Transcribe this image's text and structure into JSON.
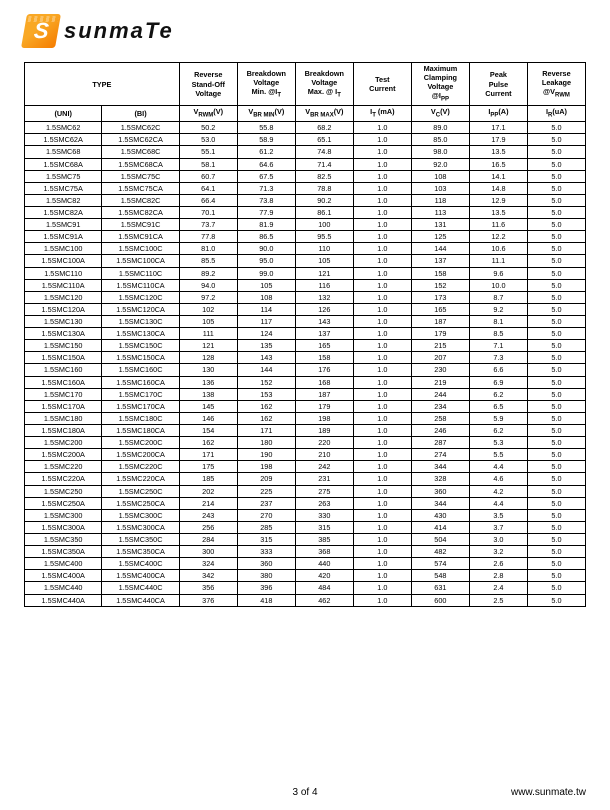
{
  "logo": {
    "text": "sunmaTe"
  },
  "headers": {
    "type": "TYPE",
    "reverse_standoff": "Reverse\nStand-Off\nVoltage",
    "breakdown_min": "Breakdown\nVoltage\nMin. @I",
    "breakdown_max": "Breakdown\nVoltage\nMax. @ I",
    "test_current": "Test\nCurrent",
    "max_clamping": "Maximum\nClamping\nVoltage\n@I",
    "peak_pulse": "Peak\nPulse\nCurrent",
    "reverse_leakage": "Reverse\nLeakage\n@V",
    "uni": "(UNI)",
    "bi": "(BI)",
    "vrwm": "V",
    "vrwm_sub": "RWM",
    "vrwm_unit": "(V)",
    "vbrmin": "V",
    "vbrmin_sub": "BR MIN",
    "vbrmin_unit": "(V)",
    "vbrmax": "V",
    "vbrmax_sub": "BR MAX",
    "vbrmax_unit": "(V)",
    "it": "I",
    "it_sub": "T",
    "it_unit": " (mA)",
    "vc": "V",
    "vc_sub": "C",
    "vc_unit": "(V)",
    "ipp": "I",
    "ipp_sub": "PP",
    "ipp_unit": "(A)",
    "ir": "I",
    "ir_sub": "R",
    "ir_unit": "(uA)",
    "bd_sub_t": "T",
    "clamp_sub": "PP",
    "leak_sub": "RWM"
  },
  "footer": {
    "page": "3 of  4",
    "url": "www.sunmate.tw"
  },
  "rows": [
    [
      "1.5SMC62",
      "1.5SMC62C",
      "50.2",
      "55.8",
      "68.2",
      "1.0",
      "89.0",
      "17.1",
      "5.0"
    ],
    [
      "1.5SMC62A",
      "1.5SMC62CA",
      "53.0",
      "58.9",
      "65.1",
      "1.0",
      "85.0",
      "17.9",
      "5.0"
    ],
    [
      "1.5SMC68",
      "1.5SMC68C",
      "55.1",
      "61.2",
      "74.8",
      "1.0",
      "98.0",
      "13.5",
      "5.0"
    ],
    [
      "1.5SMC68A",
      "1.5SMC68CA",
      "58.1",
      "64.6",
      "71.4",
      "1.0",
      "92.0",
      "16.5",
      "5.0"
    ],
    [
      "1.5SMC75",
      "1.5SMC75C",
      "60.7",
      "67.5",
      "82.5",
      "1.0",
      "108",
      "14.1",
      "5.0"
    ],
    [
      "1.5SMC75A",
      "1.5SMC75CA",
      "64.1",
      "71.3",
      "78.8",
      "1.0",
      "103",
      "14.8",
      "5.0"
    ],
    [
      "1.5SMC82",
      "1.5SMC82C",
      "66.4",
      "73.8",
      "90.2",
      "1.0",
      "118",
      "12.9",
      "5.0"
    ],
    [
      "1.5SMC82A",
      "1.5SMC82CA",
      "70.1",
      "77.9",
      "86.1",
      "1.0",
      "113",
      "13.5",
      "5.0"
    ],
    [
      "1.5SMC91",
      "1.5SMC91C",
      "73.7",
      "81.9",
      "100",
      "1.0",
      "131",
      "11.6",
      "5.0"
    ],
    [
      "1.5SMC91A",
      "1.5SMC91CA",
      "77.8",
      "86.5",
      "95.5",
      "1.0",
      "125",
      "12.2",
      "5.0"
    ],
    [
      "1.5SMC100",
      "1.5SMC100C",
      "81.0",
      "90.0",
      "110",
      "1.0",
      "144",
      "10.6",
      "5.0"
    ],
    [
      "1.5SMC100A",
      "1.5SMC100CA",
      "85.5",
      "95.0",
      "105",
      "1.0",
      "137",
      "11.1",
      "5.0"
    ],
    [
      "1.5SMC110",
      "1.5SMC110C",
      "89.2",
      "99.0",
      "121",
      "1.0",
      "158",
      "9.6",
      "5.0"
    ],
    [
      "1.5SMC110A",
      "1.5SMC110CA",
      "94.0",
      "105",
      "116",
      "1.0",
      "152",
      "10.0",
      "5.0"
    ],
    [
      "1.5SMC120",
      "1.5SMC120C",
      "97.2",
      "108",
      "132",
      "1.0",
      "173",
      "8.7",
      "5.0"
    ],
    [
      "1.5SMC120A",
      "1.5SMC120CA",
      "102",
      "114",
      "126",
      "1.0",
      "165",
      "9.2",
      "5.0"
    ],
    [
      "1.5SMC130",
      "1.5SMC130C",
      "105",
      "117",
      "143",
      "1.0",
      "187",
      "8.1",
      "5.0"
    ],
    [
      "1.5SMC130A",
      "1.5SMC130CA",
      "111",
      "124",
      "137",
      "1.0",
      "179",
      "8.5",
      "5.0"
    ],
    [
      "1.5SMC150",
      "1.5SMC150C",
      "121",
      "135",
      "165",
      "1.0",
      "215",
      "7.1",
      "5.0"
    ],
    [
      "1.5SMC150A",
      "1.5SMC150CA",
      "128",
      "143",
      "158",
      "1.0",
      "207",
      "7.3",
      "5.0"
    ],
    [
      "1.5SMC160",
      "1.5SMC160C",
      "130",
      "144",
      "176",
      "1.0",
      "230",
      "6.6",
      "5.0"
    ],
    [
      "1.5SMC160A",
      "1.5SMC160CA",
      "136",
      "152",
      "168",
      "1.0",
      "219",
      "6.9",
      "5.0"
    ],
    [
      "1.5SMC170",
      "1.5SMC170C",
      "138",
      "153",
      "187",
      "1.0",
      "244",
      "6.2",
      "5.0"
    ],
    [
      "1.5SMC170A",
      "1.5SMC170CA",
      "145",
      "162",
      "179",
      "1.0",
      "234",
      "6.5",
      "5.0"
    ],
    [
      "1.5SMC180",
      "1.5SMC180C",
      "146",
      "162",
      "198",
      "1.0",
      "258",
      "5.9",
      "5.0"
    ],
    [
      "1.5SMC180A",
      "1.5SMC180CA",
      "154",
      "171",
      "189",
      "1.0",
      "246",
      "6.2",
      "5.0"
    ],
    [
      "1.5SMC200",
      "1.5SMC200C",
      "162",
      "180",
      "220",
      "1.0",
      "287",
      "5.3",
      "5.0"
    ],
    [
      "1.5SMC200A",
      "1.5SMC200CA",
      "171",
      "190",
      "210",
      "1.0",
      "274",
      "5.5",
      "5.0"
    ],
    [
      "1.5SMC220",
      "1.5SMC220C",
      "175",
      "198",
      "242",
      "1.0",
      "344",
      "4.4",
      "5.0"
    ],
    [
      "1.5SMC220A",
      "1.5SMC220CA",
      "185",
      "209",
      "231",
      "1.0",
      "328",
      "4.6",
      "5.0"
    ],
    [
      "1.5SMC250",
      "1.5SMC250C",
      "202",
      "225",
      "275",
      "1.0",
      "360",
      "4.2",
      "5.0"
    ],
    [
      "1.5SMC250A",
      "1.5SMC250CA",
      "214",
      "237",
      "263",
      "1.0",
      "344",
      "4.4",
      "5.0"
    ],
    [
      "1.5SMC300",
      "1.5SMC300C",
      "243",
      "270",
      "330",
      "1.0",
      "430",
      "3.5",
      "5.0"
    ],
    [
      "1.5SMC300A",
      "1.5SMC300CA",
      "256",
      "285",
      "315",
      "1.0",
      "414",
      "3.7",
      "5.0"
    ],
    [
      "1.5SMC350",
      "1.5SMC350C",
      "284",
      "315",
      "385",
      "1.0",
      "504",
      "3.0",
      "5.0"
    ],
    [
      "1.5SMC350A",
      "1.5SMC350CA",
      "300",
      "333",
      "368",
      "1.0",
      "482",
      "3.2",
      "5.0"
    ],
    [
      "1.5SMC400",
      "1.5SMC400C",
      "324",
      "360",
      "440",
      "1.0",
      "574",
      "2.6",
      "5.0"
    ],
    [
      "1.5SMC400A",
      "1.5SMC400CA",
      "342",
      "380",
      "420",
      "1.0",
      "548",
      "2.8",
      "5.0"
    ],
    [
      "1.5SMC440",
      "1.5SMC440C",
      "356",
      "396",
      "484",
      "1.0",
      "631",
      "2.4",
      "5.0"
    ],
    [
      "1.5SMC440A",
      "1.5SMC440CA",
      "376",
      "418",
      "462",
      "1.0",
      "600",
      "2.5",
      "5.0"
    ]
  ]
}
